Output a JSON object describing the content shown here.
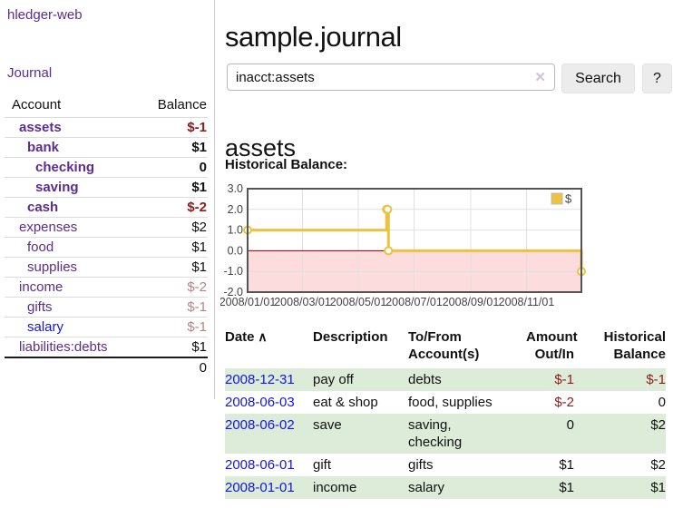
{
  "colors": {
    "accent_purple": "#5b2d91",
    "link_blue": "#1515dd",
    "negative_strong": "#8e1b1b",
    "negative_soft": "#b98383",
    "row_stripe": "#dcecd9",
    "chart_line": "#edc240",
    "chart_negative_fill": "#fcdcdc",
    "chart_zero_line": "#8b0000"
  },
  "sidebar": {
    "brand": "hledger-web",
    "journal_link": "Journal",
    "accounts": {
      "headers": {
        "account": "Account",
        "balance": "Balance"
      },
      "rows": [
        {
          "name": "assets",
          "indent": 0,
          "emph": true,
          "balance": "$-1",
          "balance_tone": "neg-strong",
          "link_tone": "purple"
        },
        {
          "name": "bank",
          "indent": 1,
          "emph": true,
          "balance": "$1",
          "balance_tone": "plain",
          "link_tone": "purple"
        },
        {
          "name": "checking",
          "indent": 2,
          "emph": true,
          "balance": "0",
          "balance_tone": "plain",
          "link_tone": "purple"
        },
        {
          "name": "saving",
          "indent": 2,
          "emph": true,
          "balance": "$1",
          "balance_tone": "plain",
          "link_tone": "purple"
        },
        {
          "name": "cash",
          "indent": 1,
          "emph": true,
          "balance": "$-2",
          "balance_tone": "neg-strong",
          "link_tone": "purple"
        },
        {
          "name": "expenses",
          "indent": 0,
          "emph": false,
          "balance": "$2",
          "balance_tone": "plain",
          "link_tone": "purple"
        },
        {
          "name": "food",
          "indent": 1,
          "emph": false,
          "balance": "$1",
          "balance_tone": "plain",
          "link_tone": "purple"
        },
        {
          "name": "supplies",
          "indent": 1,
          "emph": false,
          "balance": "$1",
          "balance_tone": "plain",
          "link_tone": "purple"
        },
        {
          "name": "income",
          "indent": 0,
          "emph": false,
          "balance": "$-2",
          "balance_tone": "neg-soft",
          "link_tone": "purple"
        },
        {
          "name": "gifts",
          "indent": 1,
          "emph": false,
          "balance": "$-1",
          "balance_tone": "neg-soft",
          "link_tone": "purple"
        },
        {
          "name": "salary",
          "indent": 1,
          "emph": false,
          "balance": "$-1",
          "balance_tone": "neg-soft",
          "link_tone": "blue"
        },
        {
          "name": "liabilities:debts",
          "indent": 0,
          "emph": false,
          "balance": "$1",
          "balance_tone": "plain",
          "link_tone": "purple"
        }
      ],
      "total": "0"
    }
  },
  "main": {
    "title": "sample.journal",
    "search": {
      "value": "inacct:assets",
      "clear_icon": "✕",
      "button_label": "Search",
      "help_label": "?"
    },
    "account_heading": "assets",
    "chart_heading": "Historical Balance:"
  },
  "chart_data": {
    "type": "line",
    "step": true,
    "title": "Historical Balance:",
    "series": [
      {
        "name": "$",
        "points": [
          [
            "2008-01-01",
            1
          ],
          [
            "2008-06-01",
            2
          ],
          [
            "2008-06-02",
            2
          ],
          [
            "2008-06-03",
            0
          ],
          [
            "2008-12-31",
            -1
          ]
        ]
      }
    ],
    "xlim": [
      "2008-01-01",
      "2008-12-31"
    ],
    "ylim": [
      -2,
      3
    ],
    "x_ticks": [
      "2008/01/01",
      "2008/03/01",
      "2008/05/01",
      "2008/07/01",
      "2008/09/01",
      "2008/11/01"
    ],
    "y_ticks": [
      3.0,
      2.0,
      1.0,
      0.0,
      -1.0,
      -2.0
    ],
    "legend": {
      "label": "$",
      "position": "top-right"
    },
    "grid": true,
    "zero_line": true,
    "negative_region_shaded": true
  },
  "register": {
    "headers": [
      {
        "label": "Date",
        "sort_glyph": "∧"
      },
      {
        "label": "Description"
      },
      {
        "label": "To/From Account(s)"
      },
      {
        "label": "Amount Out/In"
      },
      {
        "label": "Historical Balance"
      }
    ],
    "rows": [
      {
        "date": "2008-12-31",
        "description": "pay off",
        "accounts": "debts",
        "amount": "$-1",
        "amount_negative": true,
        "balance": "$-1",
        "balance_negative": true
      },
      {
        "date": "2008-06-03",
        "description": "eat & shop",
        "accounts": "food, supplies",
        "amount": "$-2",
        "amount_negative": true,
        "balance": "0",
        "balance_negative": false
      },
      {
        "date": "2008-06-02",
        "description": "save",
        "accounts": "saving, checking",
        "amount": "0",
        "amount_negative": false,
        "balance": "$2",
        "balance_negative": false
      },
      {
        "date": "2008-06-01",
        "description": "gift",
        "accounts": "gifts",
        "amount": "$1",
        "amount_negative": false,
        "balance": "$2",
        "balance_negative": false
      },
      {
        "date": "2008-01-01",
        "description": "income",
        "accounts": "salary",
        "amount": "$1",
        "amount_negative": false,
        "balance": "$1",
        "balance_negative": false
      }
    ]
  }
}
